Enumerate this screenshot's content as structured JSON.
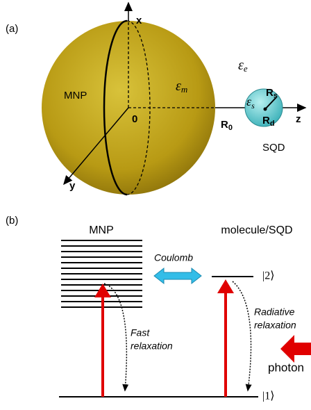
{
  "panel_a": {
    "label": "(a)",
    "x_axis": "x",
    "y_axis": "y",
    "z_axis": "z",
    "origin": "0",
    "eps_e": {
      "symbol": "ε",
      "sub": "e"
    },
    "eps_m": {
      "symbol": "ε",
      "sub": "m"
    },
    "eps_s": {
      "symbol": "ε",
      "sub": "s"
    },
    "mnp": "MNP",
    "r0": {
      "symbol": "R",
      "sub": "0"
    },
    "rs": {
      "symbol": "R",
      "sub": "s"
    },
    "rd": {
      "symbol": "R",
      "sub": "d"
    },
    "sqd": "SQD"
  },
  "panel_b": {
    "label": "(b)",
    "mnp": "MNP",
    "molecule": "molecule/SQD",
    "coulomb": "Coulomb",
    "level2": "|2⟩",
    "level1": "|1⟩",
    "fast": [
      "Fast",
      "relaxation"
    ],
    "radiative": [
      "Radiative",
      "relaxation"
    ],
    "photon": "photon"
  }
}
